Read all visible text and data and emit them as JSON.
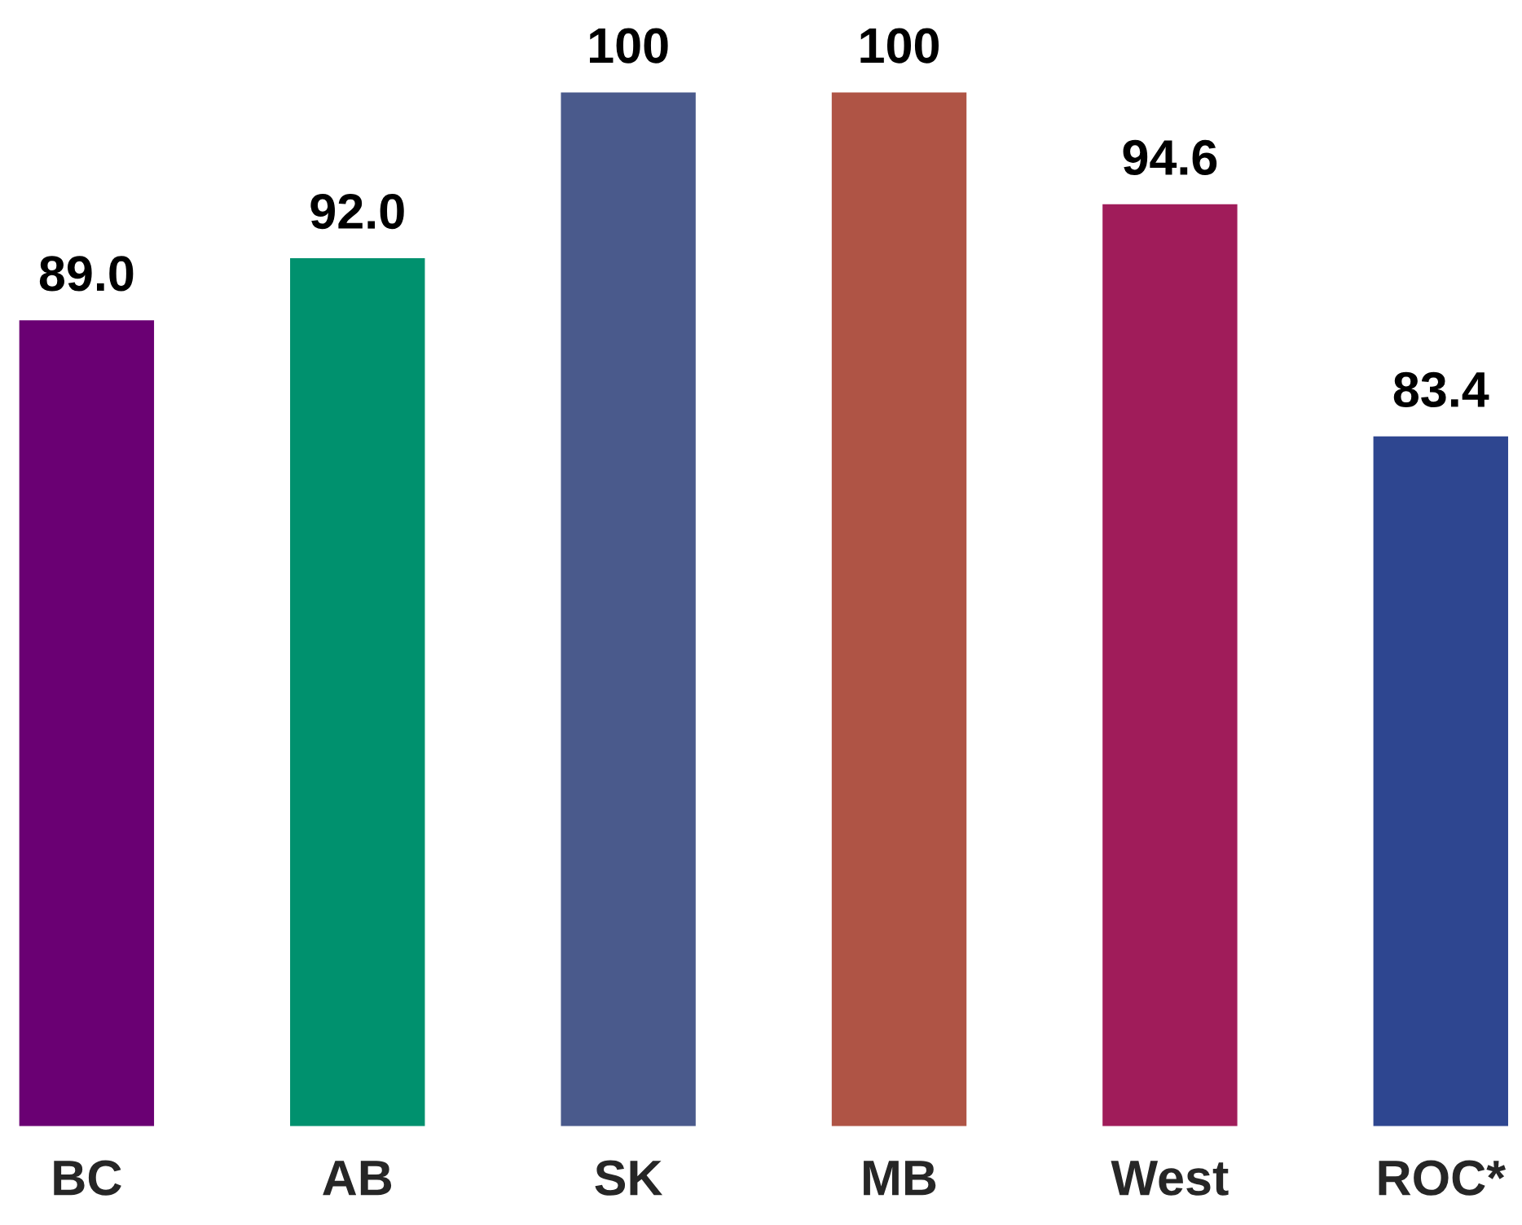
{
  "chart_data": {
    "type": "bar",
    "categories": [
      "BC",
      "AB",
      "SK",
      "MB",
      "West",
      "ROC*"
    ],
    "values": [
      89.0,
      92.0,
      100,
      100,
      94.6,
      83.4
    ],
    "colors": [
      "#6a0073",
      "#00916e",
      "#4a5a8c",
      "#af5445",
      "#a01c5a",
      "#2e4690"
    ],
    "value_labels": [
      "89.0",
      "92.0",
      "100",
      "100",
      "94.6",
      "83.4"
    ],
    "ylim": [
      50,
      100
    ],
    "tick_labels": "x",
    "grid": false,
    "legend": false
  }
}
